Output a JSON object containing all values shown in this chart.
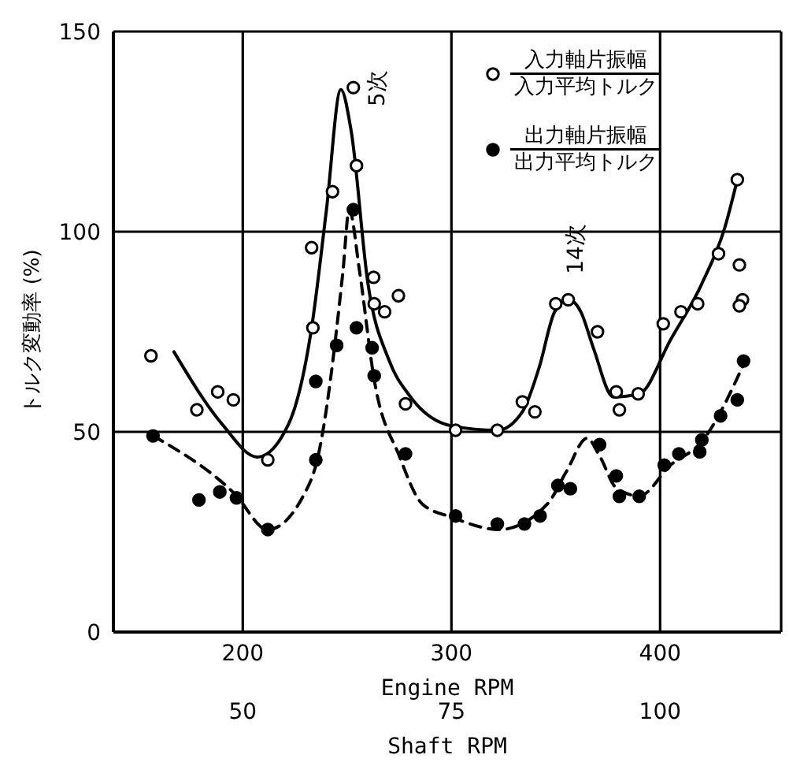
{
  "chart_data": {
    "type": "scatter",
    "xlabel": "Engine RPM",
    "x2label": "Shaft RPM",
    "ylabel": "トルク変動率 (%)",
    "xlim": [
      138,
      458
    ],
    "xticks": [
      200,
      300,
      400
    ],
    "x2lim": [
      34.5,
      114.5
    ],
    "x2ticks": [
      50,
      75,
      100
    ],
    "ylim": [
      0,
      150
    ],
    "yticks": [
      0,
      50,
      100,
      150
    ],
    "grid": true,
    "legend": "top right",
    "series": [
      {
        "name": "入力軸片振幅入力平均トルク",
        "marker": "circle",
        "color": "#000000",
        "x": [
          156,
          178,
          188,
          195.5,
          212,
          233.6,
          233,
          243,
          253,
          254.5,
          262.7,
          263,
          268,
          274.6,
          278,
          302,
          322,
          334,
          340,
          350,
          356,
          370,
          379,
          380.5,
          389.5,
          401.5,
          410,
          418,
          428,
          437,
          438,
          439.5,
          438
        ],
        "values": [
          69,
          55.5,
          60,
          58,
          43,
          76,
          96,
          110,
          136,
          116.5,
          88.6,
          82,
          80,
          84,
          57,
          50.4,
          50.4,
          57.5,
          55,
          82,
          83,
          75,
          60,
          55.5,
          59.5,
          77,
          80,
          82,
          94.5,
          113,
          91.7,
          83,
          81.5
        ]
      },
      {
        "name": "出力軸片振幅出力平均トルク",
        "marker": "circle",
        "color": "#000000",
        "x": [
          157,
          179,
          189,
          197,
          212,
          235,
          235,
          245,
          254.5,
          253,
          262,
          263,
          278,
          302,
          322,
          335,
          342.5,
          351,
          357,
          371,
          379,
          380.5,
          390,
          402,
          409,
          419,
          420,
          429,
          437,
          440
        ],
        "values": [
          49,
          33,
          35,
          33.5,
          25.6,
          43,
          62.6,
          71.6,
          76,
          105.5,
          71,
          64,
          44.5,
          29,
          27,
          27,
          29,
          36.6,
          35.8,
          46.8,
          39,
          33.9,
          33.9,
          41.7,
          44.5,
          45,
          48,
          54,
          58,
          67.7
        ]
      },
      {
        "type": "line",
        "marker": "none",
        "color": "#000000",
        "line_style": "solid",
        "x": [
          167,
          190,
          207,
          222,
          233,
          240,
          247,
          252,
          260,
          270,
          280,
          300,
          322,
          334,
          342,
          349.5,
          356,
          362,
          368,
          377.6,
          390,
          405,
          420,
          431,
          437
        ],
        "values": [
          70,
          52,
          43.7,
          52,
          76,
          105,
          135.5,
          125,
          87,
          68,
          59,
          51.5,
          50.4,
          55,
          66,
          80,
          83,
          80,
          71,
          58.7,
          59.5,
          73,
          87,
          101,
          113
        ]
      },
      {
        "type": "line",
        "marker": "none",
        "color": "#000000",
        "line_style": "dashed",
        "x": [
          157,
          196,
          212,
          229,
          236,
          248,
          251,
          256,
          263,
          275,
          286,
          300,
          323,
          346,
          355,
          365,
          371,
          379,
          390,
          405,
          420,
          441
        ],
        "values": [
          49,
          34.6,
          25.6,
          34,
          43.7,
          90,
          105.5,
          90,
          63,
          44,
          32,
          28.7,
          25.6,
          32,
          40,
          48.4,
          44,
          36,
          34,
          41.7,
          47.6,
          68
        ]
      }
    ],
    "annotations": [
      "5次",
      "14次"
    ]
  }
}
